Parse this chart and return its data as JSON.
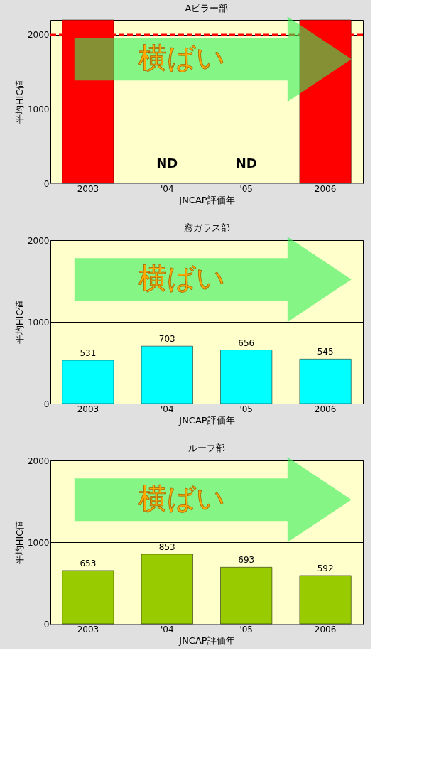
{
  "chart_data": [
    {
      "type": "bar",
      "title": "Aピラー部",
      "xlabel": "JNCAP評価年",
      "ylabel": "平均HIC値",
      "categories": [
        "2003",
        "'04",
        "'05",
        "2006"
      ],
      "series": [
        {
          "color": "#ff0000",
          "values": [
            2200,
            null,
            null,
            2200
          ]
        }
      ],
      "value_labels": [
        null,
        "ND",
        "ND",
        null
      ],
      "ylim": [
        0,
        2200
      ],
      "yticks": [
        0,
        1000,
        2000
      ],
      "grid": "y",
      "ref_lines": [
        {
          "axis": "y",
          "value": 2000,
          "color": "#ff0000",
          "line_style": "dashed"
        }
      ],
      "annotations": [
        "横ばい"
      ]
    },
    {
      "type": "bar",
      "title": "窓ガラス部",
      "xlabel": "JNCAP評価年",
      "ylabel": "平均HIC値",
      "categories": [
        "2003",
        "'04",
        "'05",
        "2006"
      ],
      "series": [
        {
          "color": "#00ffff",
          "values": [
            531,
            703,
            656,
            545
          ]
        }
      ],
      "data_labels": true,
      "ylim": [
        0,
        2000
      ],
      "yticks": [
        0,
        1000,
        2000
      ],
      "grid": "y",
      "annotations": [
        "横ばい"
      ]
    },
    {
      "type": "bar",
      "title": "ルーフ部",
      "xlabel": "JNCAP評価年",
      "ylabel": "平均HIC値",
      "categories": [
        "2003",
        "'04",
        "'05",
        "2006"
      ],
      "series": [
        {
          "color": "#99cc00",
          "values": [
            653,
            853,
            693,
            592
          ]
        }
      ],
      "data_labels": true,
      "ylim": [
        0,
        2000
      ],
      "yticks": [
        0,
        1000,
        2000
      ],
      "grid": "y",
      "annotations": [
        "横ばい"
      ]
    }
  ]
}
